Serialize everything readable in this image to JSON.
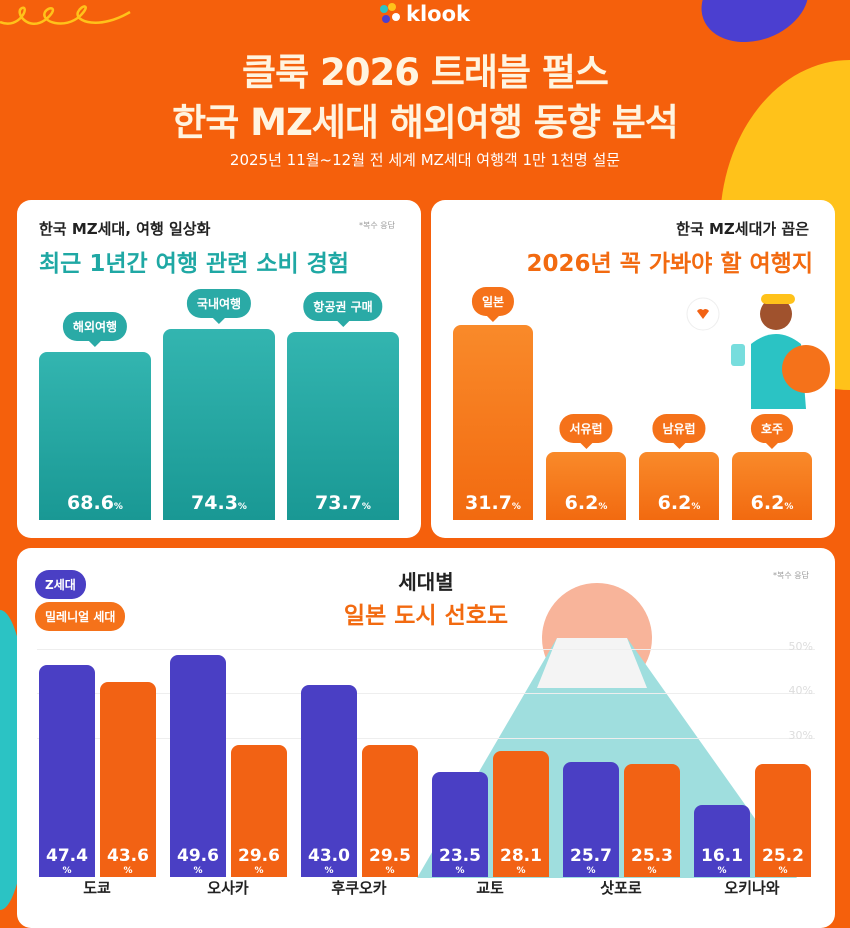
{
  "brand": {
    "logo": "klook"
  },
  "header": {
    "title_line1": "클룩 2026 트래블 펄스",
    "title_line2": "한국 MZ세대 해외여행 동향 분석",
    "subtitle": "2025년 11월~12월 전 세계 MZ세대 여행객 1만 1천명 설문"
  },
  "colors": {
    "background": "#f5600c",
    "teal": "#2aaaa6",
    "orange": "#f5721a",
    "z_gen": "#4a3fc4",
    "millennial": "#f26214"
  },
  "chart_data": [
    {
      "type": "bar",
      "kicker": "한국 MZ세대, 여행 일상화",
      "title": "최근 1년간 여행 관련 소비 경험",
      "note": "*복수 응답",
      "categories": [
        "해외여행",
        "국내여행",
        "항공권 구매"
      ],
      "values": [
        68.6,
        74.3,
        73.7
      ],
      "unit": "%"
    },
    {
      "type": "bar",
      "kicker": "한국 MZ세대가 꼽은",
      "title": "2026년 꼭 가봐야 할 여행지",
      "categories": [
        "일본",
        "서유럽",
        "남유럽",
        "호주"
      ],
      "values": [
        31.7,
        6.2,
        6.2,
        6.2
      ],
      "unit": "%"
    },
    {
      "type": "bar",
      "kicker": "세대별",
      "title": "일본 도시 선호도",
      "note": "*복수 응답",
      "categories": [
        "도쿄",
        "오사카",
        "후쿠오카",
        "교토",
        "삿포로",
        "오키나와"
      ],
      "series": [
        {
          "name": "Z세대",
          "values": [
            47.4,
            49.6,
            43.0,
            23.5,
            25.7,
            16.1
          ]
        },
        {
          "name": "밀레니얼 세대",
          "values": [
            43.6,
            29.6,
            29.5,
            28.1,
            25.3,
            25.2
          ]
        }
      ],
      "yticks": [
        "50%",
        "40%",
        "30%"
      ],
      "unit": "%",
      "grid": true,
      "legend": "top-left"
    }
  ]
}
